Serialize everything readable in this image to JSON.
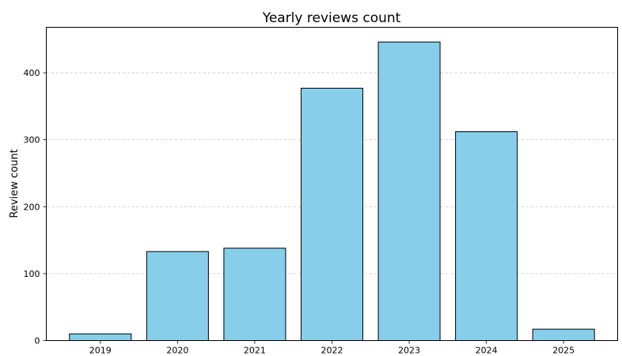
{
  "chart_data": {
    "type": "bar",
    "title": "Yearly reviews count",
    "xlabel": "",
    "ylabel": "Review count",
    "categories": [
      "2019",
      "2020",
      "2021",
      "2022",
      "2023",
      "2024",
      "2025"
    ],
    "values": [
      10,
      133,
      138,
      377,
      446,
      312,
      17
    ],
    "ylim": [
      0,
      468
    ],
    "yticks": [
      0,
      100,
      200,
      300,
      400
    ],
    "grid": "y-dashed",
    "colors": {
      "bar_fill": "#87CEEB",
      "bar_edge": "#000000",
      "grid": "#c8c8c8"
    }
  }
}
